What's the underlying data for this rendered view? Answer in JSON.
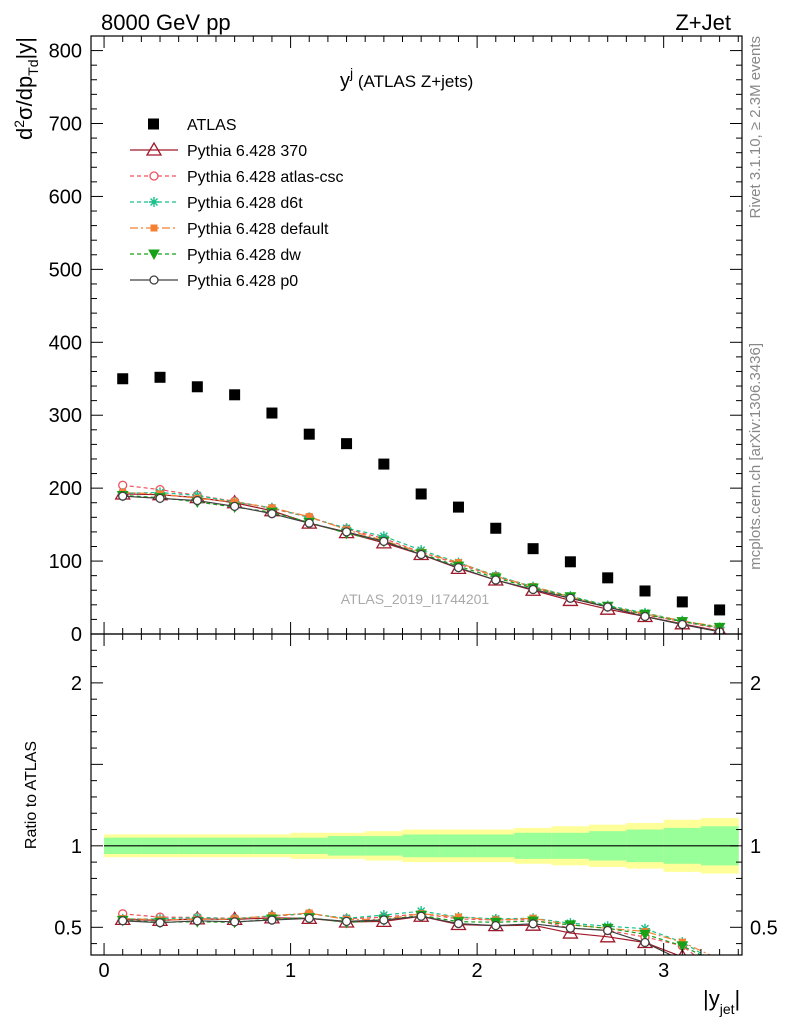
{
  "header": {
    "left": "8000 GeV pp",
    "right": "Z+Jet"
  },
  "side_labels": {
    "rivet": "Rivet 3.1.10, ≥ 2.3M events",
    "mcplots": "mcplots.cern.ch [arXiv:1306.3436]"
  },
  "chart_data": {
    "type": "scatter",
    "title": "y^j (ATLAS Z+jets)",
    "title_main": "y",
    "title_sup": "j",
    "title_rest": " (ATLAS Z+jets)",
    "watermark": "ATLAS_2019_I1744201",
    "x": [
      0.1,
      0.3,
      0.5,
      0.7,
      0.9,
      1.1,
      1.3,
      1.5,
      1.7,
      1.9,
      2.1,
      2.3,
      2.5,
      2.7,
      2.9,
      3.1,
      3.3
    ],
    "xlim": [
      -0.07,
      3.42
    ],
    "x_ticks": [
      0,
      1,
      2,
      3
    ],
    "x_tick_labels": [
      "0",
      "1",
      "2",
      "3"
    ],
    "xlabel": "|y_jet|",
    "upper": {
      "ylabel": "d²σ/dp_Td|y|",
      "ylim": [
        0,
        820
      ],
      "y_ticks": [
        0,
        100,
        200,
        300,
        400,
        500,
        600,
        700,
        800
      ],
      "y_tick_labels": [
        "0",
        "100",
        "200",
        "300",
        "400",
        "500",
        "600",
        "700",
        "800"
      ]
    },
    "ratio": {
      "ylabel": "Ratio to ATLAS",
      "ylim": [
        0.33,
        2.3
      ],
      "y_ticks": [
        0.5,
        1,
        2
      ],
      "y_tick_labels": [
        "0.5",
        "1",
        "2"
      ],
      "band_inner": [
        0.05,
        0.05,
        0.05,
        0.05,
        0.05,
        0.05,
        0.06,
        0.06,
        0.07,
        0.07,
        0.07,
        0.08,
        0.08,
        0.09,
        0.1,
        0.11,
        0.12
      ],
      "band_outer": [
        0.07,
        0.07,
        0.07,
        0.07,
        0.07,
        0.08,
        0.08,
        0.09,
        0.1,
        0.1,
        0.1,
        0.11,
        0.12,
        0.13,
        0.14,
        0.16,
        0.17
      ]
    },
    "data": {
      "name": "ATLAS",
      "values": [
        350,
        352,
        339,
        328,
        303,
        274,
        261,
        233,
        192,
        174,
        145,
        117,
        99,
        77,
        59,
        44,
        33
      ]
    },
    "series": [
      {
        "name": "Pythia 6.428 370",
        "color": "#a0182a",
        "dash": "none",
        "marker": "triangle",
        "values": [
          192,
          191,
          187,
          180,
          169,
          152,
          139,
          125,
          109,
          90,
          74,
          60,
          46,
          34,
          24,
          14,
          4
        ]
      },
      {
        "name": "Pythia 6.428 atlas-csc",
        "color": "#f0505a",
        "dash": "4,3",
        "marker": "circle-open",
        "values": [
          204,
          198,
          190,
          182,
          172,
          160,
          144,
          131,
          112,
          96,
          79,
          64,
          49,
          37,
          26,
          17,
          7
        ]
      },
      {
        "name": "Pythia 6.428 d6t",
        "color": "#18c08a",
        "dash": "4,3",
        "marker": "star",
        "values": [
          193,
          194,
          190,
          181,
          173,
          160,
          145,
          134,
          115,
          98,
          80,
          65,
          52,
          39,
          29,
          18,
          9
        ]
      },
      {
        "name": "Pythia 6.428 default",
        "color": "#f58032",
        "dash": "8,3,2,3",
        "marker": "square",
        "values": [
          194,
          192,
          186,
          181,
          173,
          161,
          143,
          128,
          112,
          98,
          79,
          65,
          51,
          38,
          28,
          18,
          10
        ]
      },
      {
        "name": "Pythia 6.428 dw",
        "color": "#18a018",
        "dash": "4,3",
        "marker": "triangle-down",
        "values": [
          190,
          187,
          181,
          174,
          167,
          153,
          138,
          127,
          110,
          93,
          77,
          63,
          51,
          38,
          27,
          17,
          9
        ]
      },
      {
        "name": "Pythia 6.428 p0",
        "color": "#404040",
        "dash": "none",
        "marker": "circle-open",
        "values": [
          189,
          186,
          183,
          175,
          165,
          152,
          140,
          127,
          109,
          91,
          74,
          61,
          49,
          37,
          24,
          13,
          3
        ]
      }
    ]
  }
}
